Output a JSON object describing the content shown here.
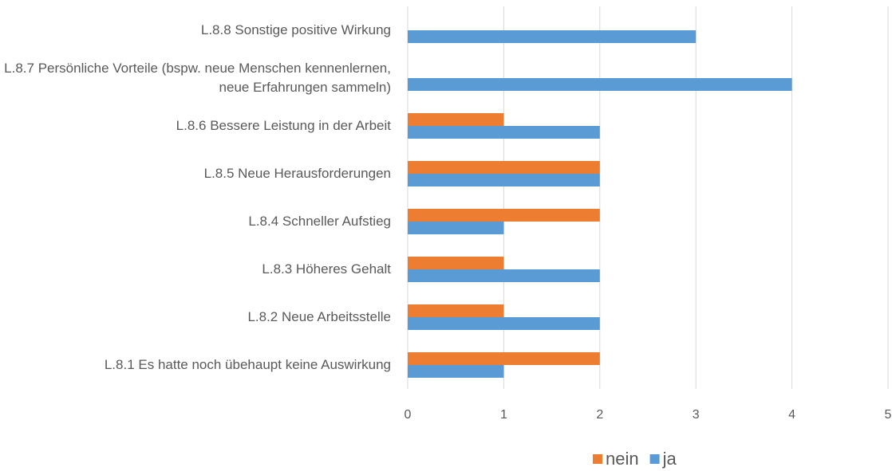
{
  "chart_data": {
    "type": "bar",
    "orientation": "horizontal",
    "categories": [
      "L.8.1 Es hatte noch übehaupt keine Auswirkung",
      "L.8.2 Neue Arbeitsstelle",
      "L.8.3 Höheres Gehalt",
      "L.8.4 Schneller Aufstieg",
      "L.8.5 Neue Herausforderungen",
      "L.8.6 Bessere Leistung in der Arbeit",
      "L.8.7 Persönliche Vorteile (bspw. neue Menschen kennenlernen, neue Erfahrungen sammeln)",
      "L.8.8 Sonstige positive Wirkung"
    ],
    "series": [
      {
        "name": "nein",
        "color": "#ED7D31",
        "values": [
          2,
          1,
          1,
          2,
          2,
          1,
          0,
          0
        ]
      },
      {
        "name": "ja",
        "color": "#5B9BD5",
        "values": [
          1,
          2,
          2,
          1,
          2,
          2,
          4,
          3
        ]
      }
    ],
    "xlim": [
      0,
      5
    ],
    "xticks": [
      0,
      1,
      2,
      3,
      4,
      5
    ],
    "grid": true,
    "legend": "bottom"
  }
}
